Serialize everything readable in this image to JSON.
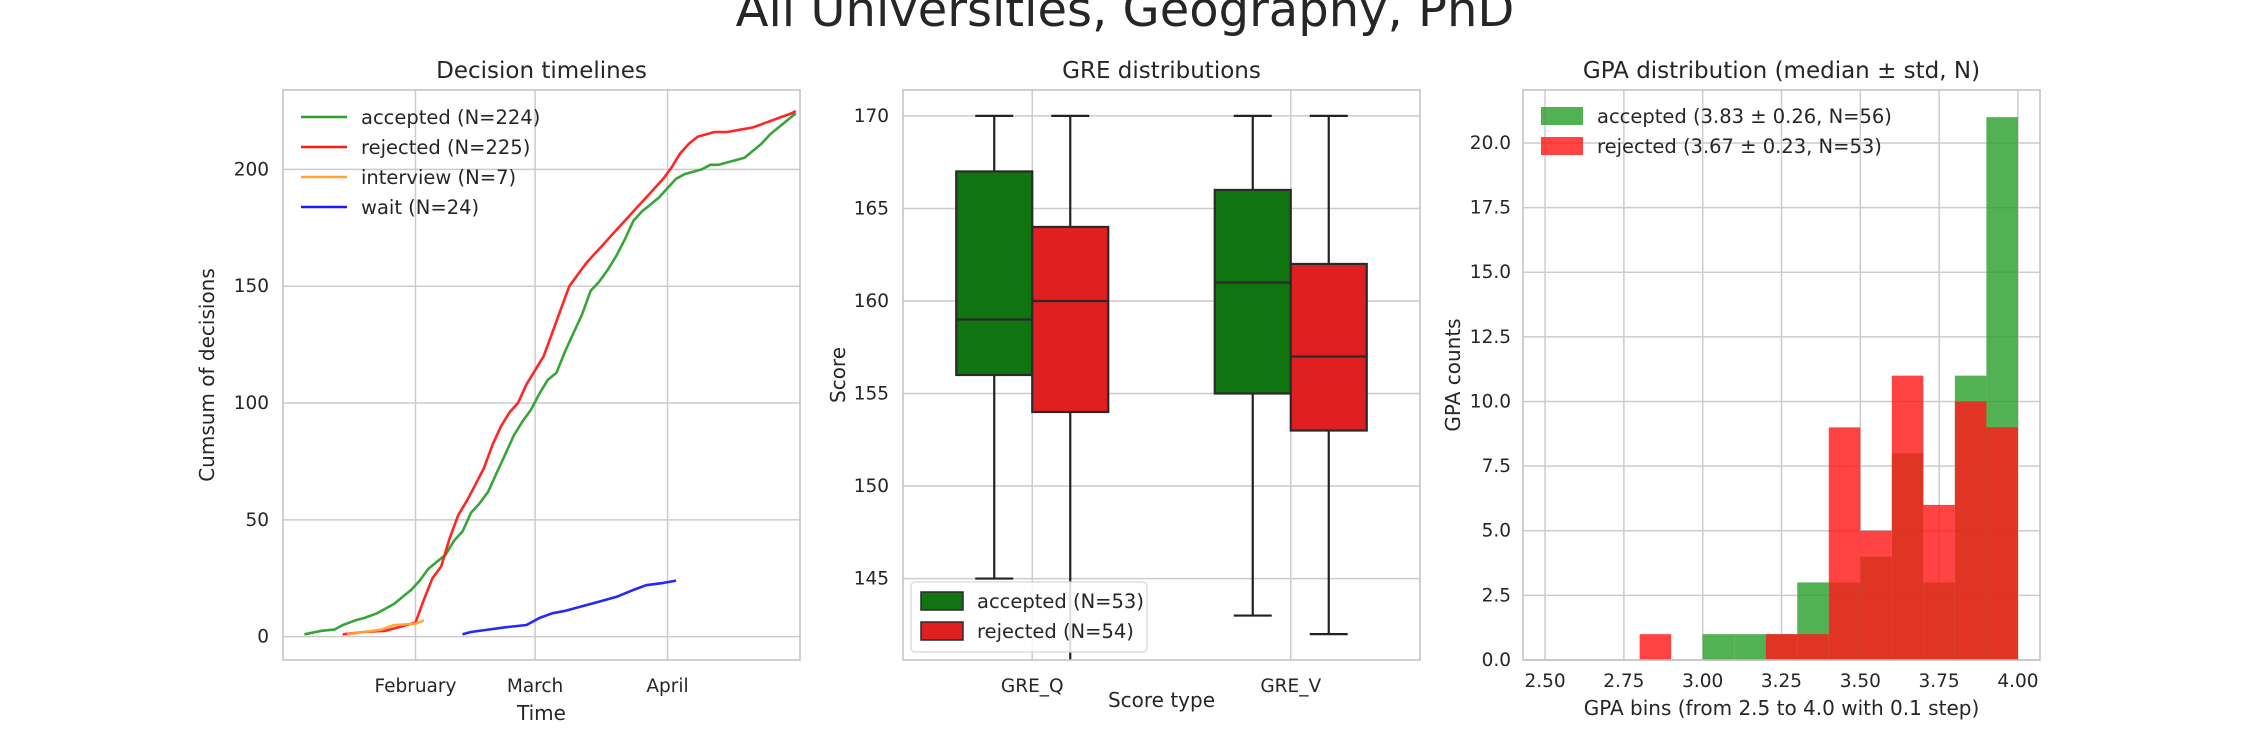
{
  "figure": {
    "title": "All Universities, Geography, PhD"
  },
  "chart_data": [
    {
      "type": "line",
      "title": "Decision timelines",
      "xlabel": "Time",
      "ylabel": "Cumsum of decisions",
      "x_ticks": [
        "February",
        "March",
        "April"
      ],
      "x_tick_dates": [
        "02-01",
        "03-01",
        "04-01"
      ],
      "y_ticks": [
        0,
        50,
        100,
        150,
        200
      ],
      "ylim": [
        -10,
        234
      ],
      "xlim": [
        "01-01",
        "05-02"
      ],
      "grid": true,
      "legend_position": "top-left",
      "series": [
        {
          "name": "accepted (N=224)",
          "color": "#2ca02c",
          "points": [
            [
              "01-06",
              1
            ],
            [
              "01-10",
              2.5
            ],
            [
              "01-13",
              3
            ],
            [
              "01-15",
              5
            ],
            [
              "01-18",
              7
            ],
            [
              "01-20",
              8
            ],
            [
              "01-23",
              10
            ],
            [
              "01-25",
              12
            ],
            [
              "01-27",
              14
            ],
            [
              "01-29",
              17
            ],
            [
              "01-31",
              20
            ],
            [
              "02-02",
              24
            ],
            [
              "02-04",
              29
            ],
            [
              "02-06",
              32
            ],
            [
              "02-08",
              35
            ],
            [
              "02-10",
              41
            ],
            [
              "02-12",
              45
            ],
            [
              "02-14",
              53
            ],
            [
              "02-16",
              57
            ],
            [
              "02-18",
              62
            ],
            [
              "02-20",
              70
            ],
            [
              "02-22",
              78
            ],
            [
              "02-24",
              86
            ],
            [
              "02-26",
              92
            ],
            [
              "02-28",
              97
            ],
            [
              "03-02",
              104
            ],
            [
              "03-04",
              110
            ],
            [
              "03-06",
              113
            ],
            [
              "03-08",
              122
            ],
            [
              "03-10",
              130
            ],
            [
              "03-12",
              138
            ],
            [
              "03-14",
              148
            ],
            [
              "03-16",
              152
            ],
            [
              "03-18",
              157
            ],
            [
              "03-20",
              163
            ],
            [
              "03-22",
              170
            ],
            [
              "03-24",
              178
            ],
            [
              "03-26",
              182
            ],
            [
              "03-28",
              185
            ],
            [
              "03-30",
              188
            ],
            [
              "04-01",
              192
            ],
            [
              "04-03",
              196
            ],
            [
              "04-05",
              198
            ],
            [
              "04-07",
              199
            ],
            [
              "04-09",
              200
            ],
            [
              "04-11",
              202
            ],
            [
              "04-13",
              202
            ],
            [
              "04-15",
              203
            ],
            [
              "04-17",
              204
            ],
            [
              "04-19",
              205
            ],
            [
              "04-21",
              208
            ],
            [
              "04-23",
              211
            ],
            [
              "04-25",
              215
            ],
            [
              "04-27",
              218
            ],
            [
              "04-29",
              221
            ],
            [
              "05-01",
              224
            ]
          ]
        },
        {
          "name": "rejected (N=225)",
          "color": "#ff1a1a",
          "points": [
            [
              "01-15",
              1
            ],
            [
              "01-20",
              2
            ],
            [
              "01-25",
              2.5
            ],
            [
              "01-30",
              5
            ],
            [
              "02-01",
              6
            ],
            [
              "02-03",
              16
            ],
            [
              "02-05",
              25
            ],
            [
              "02-07",
              30
            ],
            [
              "02-09",
              42
            ],
            [
              "02-11",
              52
            ],
            [
              "02-13",
              58
            ],
            [
              "02-15",
              65
            ],
            [
              "02-17",
              72
            ],
            [
              "02-19",
              82
            ],
            [
              "02-21",
              90
            ],
            [
              "02-23",
              96
            ],
            [
              "02-25",
              100
            ],
            [
              "02-27",
              108
            ],
            [
              "03-01",
              114
            ],
            [
              "03-03",
              120
            ],
            [
              "03-05",
              130
            ],
            [
              "03-07",
              140
            ],
            [
              "03-09",
              150
            ],
            [
              "03-11",
              155
            ],
            [
              "03-13",
              160
            ],
            [
              "03-15",
              164
            ],
            [
              "03-17",
              168
            ],
            [
              "03-19",
              172
            ],
            [
              "03-21",
              176
            ],
            [
              "03-23",
              180
            ],
            [
              "03-25",
              184
            ],
            [
              "03-27",
              188
            ],
            [
              "03-29",
              192
            ],
            [
              "03-31",
              196
            ],
            [
              "04-02",
              201
            ],
            [
              "04-04",
              207
            ],
            [
              "04-06",
              211
            ],
            [
              "04-08",
              214
            ],
            [
              "04-10",
              215
            ],
            [
              "04-12",
              216
            ],
            [
              "04-15",
              216
            ],
            [
              "04-18",
              217
            ],
            [
              "04-21",
              218
            ],
            [
              "04-24",
              220
            ],
            [
              "04-27",
              222
            ],
            [
              "04-30",
              224
            ],
            [
              "05-01",
              225
            ]
          ]
        },
        {
          "name": "interview (N=7)",
          "color": "#ffa533",
          "points": [
            [
              "01-16",
              1
            ],
            [
              "01-20",
              2
            ],
            [
              "01-24",
              3
            ],
            [
              "01-27",
              5
            ],
            [
              "02-01",
              5.5
            ],
            [
              "02-03",
              7
            ]
          ]
        },
        {
          "name": "wait (N=24)",
          "color": "#1a1aff",
          "points": [
            [
              "02-12",
              1
            ],
            [
              "02-14",
              2
            ],
            [
              "02-18",
              3
            ],
            [
              "02-22",
              4
            ],
            [
              "02-27",
              5
            ],
            [
              "03-02",
              8
            ],
            [
              "03-05",
              10
            ],
            [
              "03-08",
              11
            ],
            [
              "03-12",
              13
            ],
            [
              "03-16",
              15
            ],
            [
              "03-20",
              17
            ],
            [
              "03-24",
              20
            ],
            [
              "03-27",
              22
            ],
            [
              "03-31",
              23
            ],
            [
              "04-03",
              24
            ]
          ]
        }
      ]
    },
    {
      "type": "box",
      "title": "GRE distributions",
      "xlabel": "Score type",
      "ylabel": "Score",
      "categories": [
        "GRE_Q",
        "GRE_V"
      ],
      "y_ticks": [
        145,
        150,
        155,
        160,
        165,
        170
      ],
      "ylim": [
        140.6,
        171.4
      ],
      "grid": true,
      "legend_position": "bottom-left",
      "series": [
        {
          "name": "accepted (N=53)",
          "color": "#107510",
          "boxes": [
            {
              "whislo": 145,
              "q1": 156,
              "med": 159,
              "q3": 167,
              "whishi": 170
            },
            {
              "whislo": 143,
              "q1": 155,
              "med": 161,
              "q3": 166,
              "whishi": 170
            }
          ]
        },
        {
          "name": "rejected (N=54)",
          "color": "#e02020",
          "boxes": [
            {
              "whislo": 140,
              "q1": 154,
              "med": 160,
              "q3": 164,
              "whishi": 170
            },
            {
              "whislo": 142,
              "q1": 153,
              "med": 157,
              "q3": 162,
              "whishi": 170
            }
          ]
        }
      ]
    },
    {
      "type": "histogram",
      "title": "GPA distribution (median ± std, N)",
      "xlabel": "GPA bins (from 2.5 to 4.0 with 0.1 step)",
      "ylabel": "GPA counts",
      "x_ticks": [
        "2.50",
        "2.75",
        "3.00",
        "3.25",
        "3.50",
        "3.75",
        "4.00"
      ],
      "y_ticks": [
        "0.0",
        "2.5",
        "5.0",
        "7.5",
        "10.0",
        "12.5",
        "15.0",
        "17.5",
        "20.0"
      ],
      "xlim": [
        2.43,
        4.07
      ],
      "ylim": [
        0,
        22.05
      ],
      "bin_edges": [
        2.5,
        2.6,
        2.7,
        2.8,
        2.9,
        3.0,
        3.1,
        3.2,
        3.3,
        3.4,
        3.5,
        3.6,
        3.7,
        3.8,
        3.9,
        4.0
      ],
      "grid": true,
      "legend_position": "top-left",
      "series": [
        {
          "name": "accepted (3.83 ± 0.26, N=56)",
          "color": "#2ca02c",
          "counts": [
            0,
            0,
            0,
            0,
            0,
            1,
            1,
            1,
            3,
            3,
            4,
            8,
            3,
            11,
            21
          ]
        },
        {
          "name": "rejected (3.67 ± 0.23, N=53)",
          "color": "#ff1a1a",
          "counts": [
            0,
            0,
            0,
            1,
            0,
            0,
            0,
            1,
            1,
            9,
            5,
            11,
            6,
            10,
            9
          ]
        }
      ]
    }
  ]
}
